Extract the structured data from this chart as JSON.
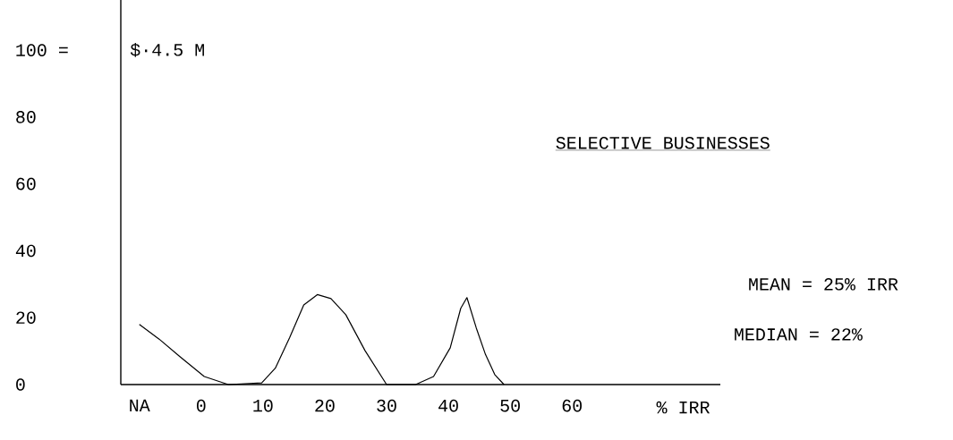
{
  "chart_data": {
    "type": "line",
    "title": "SELECTIVE BUSINESSES",
    "xlabel": "% IRR",
    "annotations": [
      "$·4.5 M",
      "MEAN = 25% IRR",
      "MEDIAN = 22%"
    ],
    "series": [
      {
        "color": "#000000",
        "x": [
          -10,
          -6.8,
          -3.4,
          0.5,
          4.4,
          9.8,
          12,
          14.3,
          16.6,
          18.8,
          21,
          23.4,
          26.5,
          30,
          34.7,
          37.6,
          40.3,
          42,
          43,
          44.5,
          46,
          47.5,
          49
        ],
        "values": [
          18,
          13.6,
          8.3,
          2.4,
          0,
          0.5,
          4.9,
          14,
          23.8,
          26.9,
          25.7,
          20.9,
          10.2,
          0,
          0,
          2.4,
          11,
          22.8,
          26,
          17,
          9,
          3,
          0
        ]
      }
    ],
    "xlim": [
      -13,
      84
    ],
    "ylim": [
      0,
      115
    ],
    "xticks": [
      {
        "value": -10,
        "label": "NA"
      },
      0,
      10,
      20,
      30,
      40,
      50,
      60
    ],
    "yticks": [
      0,
      20,
      40,
      60,
      80,
      {
        "value": 100,
        "label": "100 ="
      }
    ],
    "line_style": "solid",
    "marker": "none"
  }
}
